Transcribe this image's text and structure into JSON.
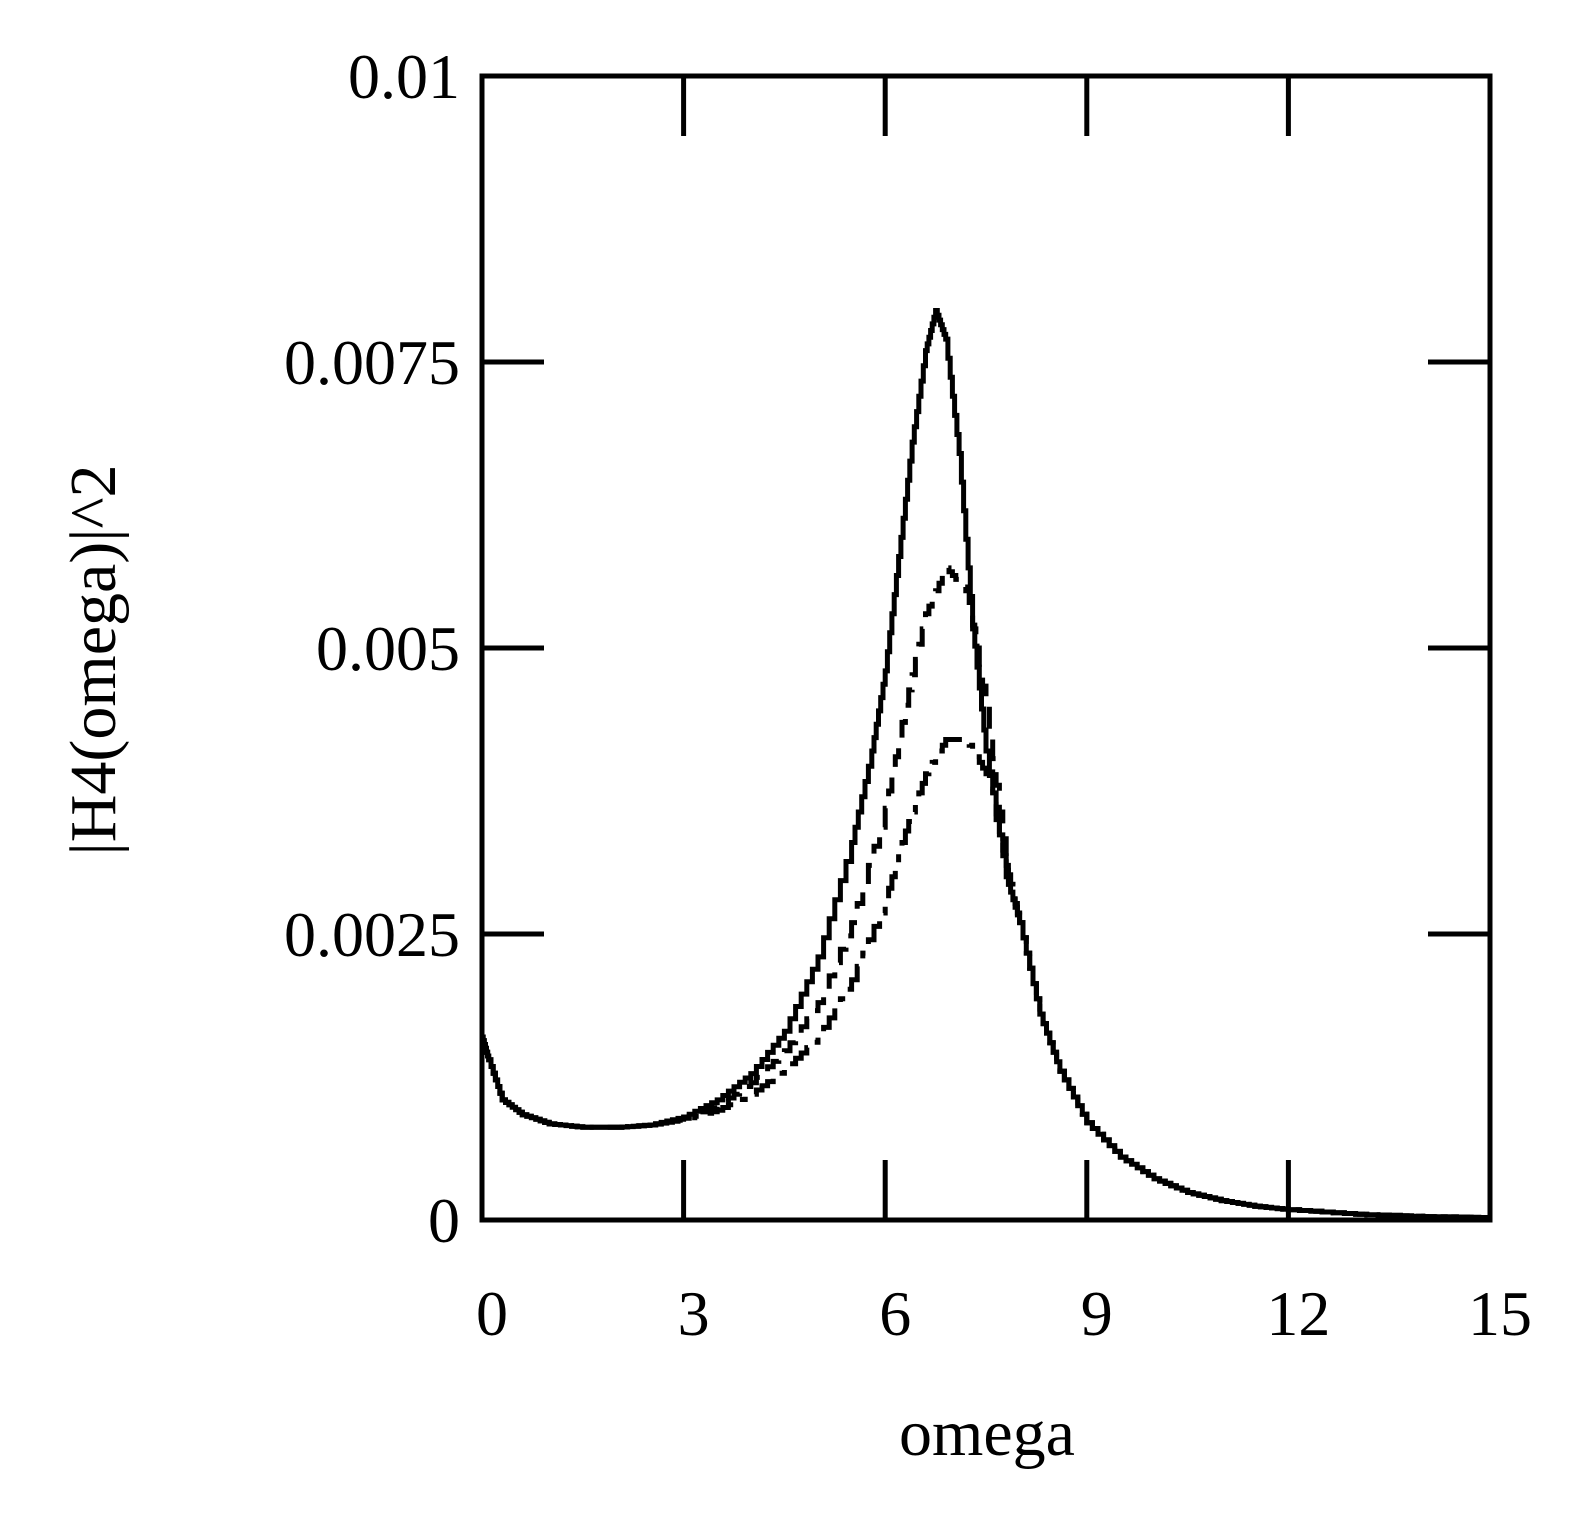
{
  "chart_data": {
    "type": "line",
    "title": "",
    "xlabel": "omega",
    "ylabel": "|H4(omega)|^2",
    "xlim": [
      0,
      15
    ],
    "ylim": [
      0,
      0.01
    ],
    "x_ticks": [
      0,
      3,
      6,
      9,
      12,
      15
    ],
    "x_tick_labels": [
      "0",
      "3",
      "6",
      "9",
      "12",
      "15"
    ],
    "y_ticks": [
      0,
      0.0025,
      0.005,
      0.0075,
      0.01
    ],
    "y_tick_labels": [
      "0",
      "0.0025",
      "0.005",
      "0.0075",
      "0.01"
    ],
    "grid": false,
    "legend": "none",
    "series": [
      {
        "name": "solid",
        "style": "solid",
        "x": [
          0,
          0.1,
          0.3,
          0.6,
          1.0,
          1.5,
          2.0,
          2.5,
          3.0,
          3.5,
          4.0,
          4.5,
          5.0,
          5.5,
          5.8,
          6.0,
          6.2,
          6.4,
          6.6,
          6.75,
          6.9,
          7.1,
          7.3,
          7.5,
          7.8,
          8.0,
          8.3,
          8.6,
          9.0,
          9.5,
          10.0,
          10.5,
          11.0,
          11.5,
          12.0,
          13.0,
          14.0,
          15.0
        ],
        "y": [
          0.0016,
          0.0014,
          0.00105,
          0.00092,
          0.00084,
          0.00081,
          0.00081,
          0.00083,
          0.0009,
          0.00105,
          0.00128,
          0.00165,
          0.0023,
          0.0033,
          0.0041,
          0.0048,
          0.0058,
          0.0068,
          0.0076,
          0.00795,
          0.0077,
          0.0067,
          0.0052,
          0.0041,
          0.003,
          0.0026,
          0.0018,
          0.0013,
          0.00085,
          0.00055,
          0.00036,
          0.00024,
          0.00017,
          0.00012,
          9e-05,
          5e-05,
          3e-05,
          2e-05
        ]
      },
      {
        "name": "dashed",
        "style": "dashed",
        "x": [
          0,
          0.1,
          0.3,
          0.6,
          1.0,
          1.5,
          2.0,
          2.5,
          3.0,
          3.5,
          4.0,
          4.5,
          5.0,
          5.5,
          6.0,
          6.3,
          6.6,
          6.9,
          7.2,
          7.5,
          7.8,
          8.0,
          8.3,
          8.6,
          9.0,
          9.5,
          10.0,
          10.5,
          11.0,
          11.5,
          12.0,
          13.0,
          14.0,
          15.0
        ],
        "y": [
          0.0016,
          0.0014,
          0.00105,
          0.00092,
          0.00084,
          0.00081,
          0.00081,
          0.00083,
          0.00089,
          0.001,
          0.0012,
          0.00148,
          0.0019,
          0.0026,
          0.0036,
          0.0045,
          0.0053,
          0.0057,
          0.0055,
          0.0045,
          0.0031,
          0.0026,
          0.0018,
          0.0013,
          0.00085,
          0.00055,
          0.00036,
          0.00024,
          0.00017,
          0.00012,
          9e-05,
          5e-05,
          3e-05,
          2e-05
        ]
      },
      {
        "name": "dash-dot",
        "style": "dashdot",
        "x": [
          0,
          0.1,
          0.3,
          0.6,
          1.0,
          1.5,
          2.0,
          2.5,
          3.0,
          3.5,
          4.0,
          4.5,
          5.0,
          5.5,
          6.0,
          6.3,
          6.6,
          6.9,
          7.2,
          7.5,
          7.8,
          8.0,
          8.3,
          8.6,
          9.0,
          9.5,
          10.0,
          10.5,
          11.0,
          11.5,
          12.0,
          13.0,
          14.0,
          15.0
        ],
        "y": [
          0.0016,
          0.0014,
          0.00105,
          0.00092,
          0.00084,
          0.00081,
          0.00081,
          0.00083,
          0.00088,
          0.00096,
          0.0011,
          0.00132,
          0.0016,
          0.0021,
          0.0028,
          0.0034,
          0.0039,
          0.0042,
          0.0042,
          0.0039,
          0.0031,
          0.0026,
          0.0018,
          0.0013,
          0.00085,
          0.00055,
          0.00036,
          0.00024,
          0.00017,
          0.00012,
          9e-05,
          5e-05,
          3e-05,
          2e-05
        ]
      }
    ]
  }
}
